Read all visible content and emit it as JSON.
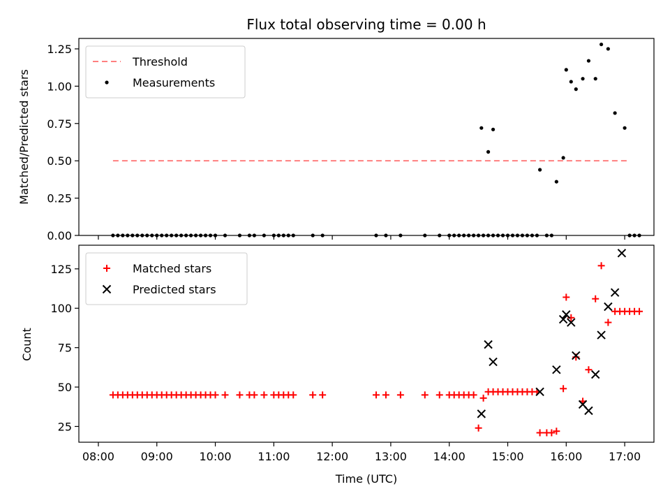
{
  "chart_data": [
    {
      "type": "scatter",
      "title": "Flux total observing time = 0.00 h",
      "xlabel": "",
      "ylabel": "Matched/Predicted stars",
      "ylim": [
        0,
        1.32
      ],
      "yticks": [
        "0.00",
        "0.25",
        "0.50",
        "0.75",
        "1.00",
        "1.25"
      ],
      "ytick_values": [
        0,
        0.25,
        0.5,
        0.75,
        1.0,
        1.25
      ],
      "legend_position": "top-left",
      "colors": {
        "threshold": "#ff7f7f",
        "measurements": "#000000"
      },
      "series": [
        {
          "name": "Threshold",
          "kind": "dashed-line",
          "x": [
            "08:15",
            "17:05"
          ],
          "y": [
            0.5,
            0.5
          ]
        },
        {
          "name": "Measurements",
          "kind": "dot",
          "x": [
            "08:15",
            "08:20",
            "08:25",
            "08:30",
            "08:35",
            "08:40",
            "08:45",
            "08:50",
            "08:55",
            "09:00",
            "09:05",
            "09:10",
            "09:15",
            "09:20",
            "09:25",
            "09:30",
            "09:35",
            "09:40",
            "09:45",
            "09:50",
            "09:55",
            "10:00",
            "10:10",
            "10:25",
            "10:35",
            "10:40",
            "10:50",
            "11:00",
            "11:05",
            "11:10",
            "11:15",
            "11:20",
            "11:40",
            "11:50",
            "12:45",
            "12:55",
            "13:10",
            "13:35",
            "13:50",
            "14:00",
            "14:05",
            "14:10",
            "14:15",
            "14:20",
            "14:25",
            "14:30",
            "14:35",
            "14:40",
            "14:45",
            "14:50",
            "14:55",
            "15:00",
            "15:05",
            "15:10",
            "15:15",
            "15:20",
            "15:25",
            "15:30",
            "15:40",
            "15:45",
            "14:33",
            "14:40",
            "14:45",
            "15:33",
            "15:50",
            "15:57",
            "16:00",
            "16:05",
            "16:10",
            "16:17",
            "16:23",
            "16:30",
            "16:36",
            "16:43",
            "16:50",
            "17:00",
            "17:05",
            "17:10",
            "17:15"
          ],
          "y": [
            0,
            0,
            0,
            0,
            0,
            0,
            0,
            0,
            0,
            0,
            0,
            0,
            0,
            0,
            0,
            0,
            0,
            0,
            0,
            0,
            0,
            0,
            0,
            0,
            0,
            0,
            0,
            0,
            0,
            0,
            0,
            0,
            0,
            0,
            0,
            0,
            0,
            0,
            0,
            0,
            0,
            0,
            0,
            0,
            0,
            0,
            0,
            0,
            0,
            0,
            0,
            0,
            0,
            0,
            0,
            0,
            0,
            0,
            0,
            0,
            0.72,
            0.56,
            0.71,
            0.44,
            0.36,
            0.52,
            1.11,
            1.03,
            0.98,
            1.05,
            1.17,
            1.05,
            1.28,
            1.25,
            0.82,
            0.72,
            0,
            0,
            0
          ]
        }
      ]
    },
    {
      "type": "scatter",
      "title": "",
      "xlabel": "Time (UTC)",
      "ylabel": "Count",
      "ylim": [
        15,
        140
      ],
      "yticks": [
        "25",
        "50",
        "75",
        "100",
        "125"
      ],
      "ytick_values": [
        25,
        50,
        75,
        100,
        125
      ],
      "xticks": [
        "08:00",
        "09:00",
        "10:00",
        "11:00",
        "12:00",
        "13:00",
        "14:00",
        "15:00",
        "16:00",
        "17:00"
      ],
      "xlim": [
        "07:40",
        "17:30"
      ],
      "legend_position": "top-left",
      "colors": {
        "matched": "#ff0000",
        "predicted": "#000000"
      },
      "series": [
        {
          "name": "Matched stars",
          "kind": "plus",
          "x": [
            "08:15",
            "08:20",
            "08:25",
            "08:30",
            "08:35",
            "08:40",
            "08:45",
            "08:50",
            "08:55",
            "09:00",
            "09:05",
            "09:10",
            "09:15",
            "09:20",
            "09:25",
            "09:30",
            "09:35",
            "09:40",
            "09:45",
            "09:50",
            "09:55",
            "10:00",
            "10:10",
            "10:25",
            "10:35",
            "10:40",
            "10:50",
            "11:00",
            "11:05",
            "11:10",
            "11:15",
            "11:20",
            "11:40",
            "11:50",
            "12:45",
            "12:55",
            "13:10",
            "13:35",
            "13:50",
            "14:00",
            "14:05",
            "14:10",
            "14:15",
            "14:20",
            "14:25",
            "14:30",
            "14:35",
            "14:40",
            "14:45",
            "14:50",
            "14:55",
            "15:00",
            "15:05",
            "15:10",
            "15:15",
            "15:20",
            "15:25",
            "15:30",
            "15:33",
            "15:40",
            "15:45",
            "15:50",
            "15:57",
            "16:00",
            "16:05",
            "16:10",
            "16:17",
            "16:23",
            "16:30",
            "16:36",
            "16:43",
            "16:50",
            "16:55",
            "17:00",
            "17:05",
            "17:10",
            "17:15"
          ],
          "y": [
            45,
            45,
            45,
            45,
            45,
            45,
            45,
            45,
            45,
            45,
            45,
            45,
            45,
            45,
            45,
            45,
            45,
            45,
            45,
            45,
            45,
            45,
            45,
            45,
            45,
            45,
            45,
            45,
            45,
            45,
            45,
            45,
            45,
            45,
            45,
            45,
            45,
            45,
            45,
            45,
            45,
            45,
            45,
            45,
            45,
            24,
            43,
            47,
            47,
            47,
            47,
            47,
            47,
            47,
            47,
            47,
            47,
            47,
            21,
            21,
            21,
            22,
            49,
            107,
            94,
            69,
            41,
            61,
            106,
            127,
            91,
            98,
            98,
            98,
            98,
            98,
            98
          ]
        },
        {
          "name": "Predicted stars",
          "kind": "cross",
          "x": [
            "14:33",
            "14:40",
            "14:45",
            "15:33",
            "15:50",
            "15:57",
            "16:00",
            "16:05",
            "16:10",
            "16:17",
            "16:23",
            "16:30",
            "16:36",
            "16:43",
            "16:50"
          ],
          "y": [
            33,
            77,
            66,
            47,
            61,
            93,
            96,
            91,
            70,
            39,
            35,
            58,
            83,
            101,
            110
          ]
        },
        {
          "name": "",
          "kind": "cross-extra",
          "x": [
            "16:57"
          ],
          "y": [
            135
          ]
        }
      ]
    }
  ]
}
